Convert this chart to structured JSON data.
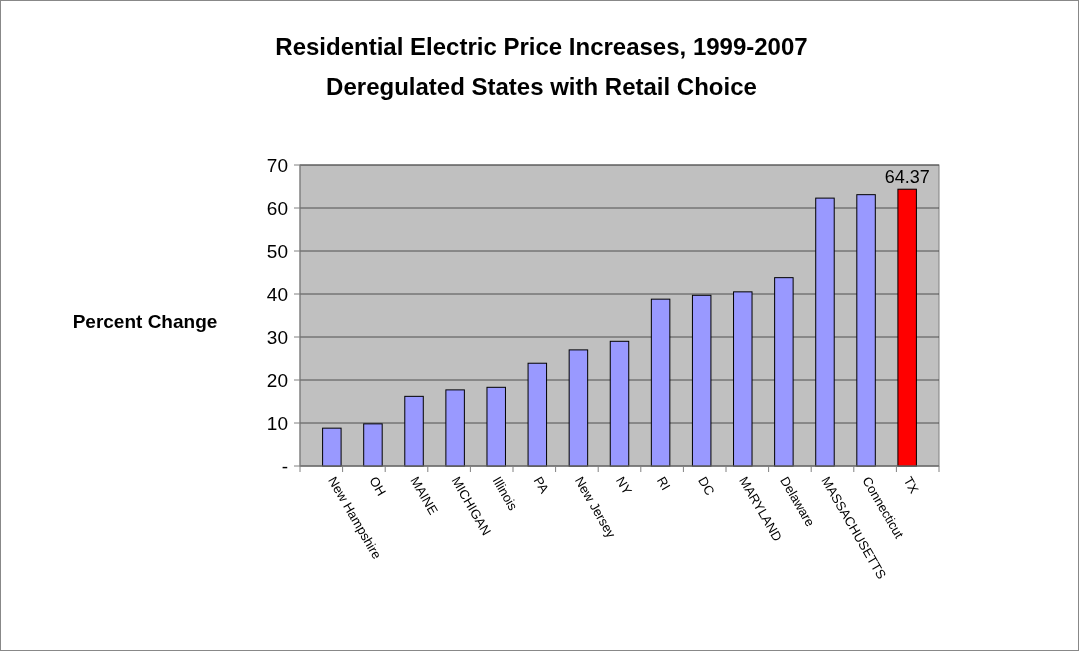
{
  "chart_data": {
    "type": "bar",
    "title": "Residential Electric Price Increases, 1999-2007",
    "subtitle": "Deregulated States with Retail Choice",
    "ylabel": "Percent Change",
    "categories": [
      "New Hampshire",
      "OH",
      "MAINE",
      "MICHIGAN",
      "Illinois",
      "PA",
      "New Jersey",
      "NY",
      "RI",
      "DC",
      "MARYLAND",
      "Delaware",
      "MASSACHUSETTS",
      "Connecticut",
      "TX"
    ],
    "values": [
      8.8,
      9.8,
      16.2,
      17.7,
      18.3,
      23.9,
      27.0,
      29.0,
      38.8,
      39.7,
      40.5,
      43.8,
      62.3,
      63.1,
      64.37
    ],
    "colors": [
      "#9999ff",
      "#9999ff",
      "#9999ff",
      "#9999ff",
      "#9999ff",
      "#9999ff",
      "#9999ff",
      "#9999ff",
      "#9999ff",
      "#9999ff",
      "#9999ff",
      "#9999ff",
      "#9999ff",
      "#9999ff",
      "#ff0000"
    ],
    "value_labels": [
      null,
      null,
      null,
      null,
      null,
      null,
      null,
      null,
      null,
      null,
      null,
      null,
      null,
      null,
      "64.37"
    ],
    "ylim": [
      0,
      70
    ],
    "yticks": [
      {
        "value": 0,
        "label": "-"
      },
      10,
      20,
      30,
      40,
      50,
      60,
      70
    ],
    "grid": "y"
  }
}
